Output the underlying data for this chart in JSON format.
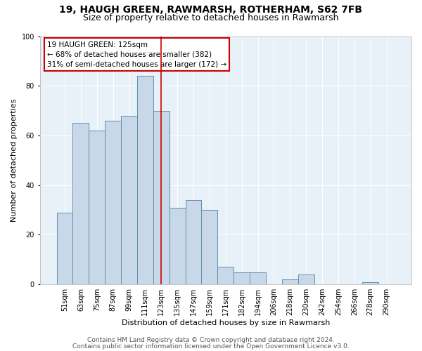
{
  "title1": "19, HAUGH GREEN, RAWMARSH, ROTHERHAM, S62 7FB",
  "title2": "Size of property relative to detached houses in Rawmarsh",
  "xlabel": "Distribution of detached houses by size in Rawmarsh",
  "ylabel": "Number of detached properties",
  "categories": [
    "51sqm",
    "63sqm",
    "75sqm",
    "87sqm",
    "99sqm",
    "111sqm",
    "123sqm",
    "135sqm",
    "147sqm",
    "159sqm",
    "171sqm",
    "182sqm",
    "194sqm",
    "206sqm",
    "218sqm",
    "230sqm",
    "242sqm",
    "254sqm",
    "266sqm",
    "278sqm",
    "290sqm"
  ],
  "values": [
    29,
    65,
    62,
    66,
    68,
    84,
    70,
    31,
    34,
    30,
    7,
    5,
    5,
    0,
    2,
    4,
    0,
    0,
    0,
    1,
    0
  ],
  "bar_color": "#c8d8e8",
  "bar_edge_color": "#6090b0",
  "property_line_x": 6.0,
  "annotation_text": "19 HAUGH GREEN: 125sqm\n← 68% of detached houses are smaller (382)\n31% of semi-detached houses are larger (172) →",
  "annotation_box_color": "#ffffff",
  "annotation_box_edge_color": "#cc0000",
  "property_line_color": "#cc0000",
  "ylim": [
    0,
    100
  ],
  "yticks": [
    0,
    20,
    40,
    60,
    80,
    100
  ],
  "background_color": "#e8f0f8",
  "grid_color": "#ffffff",
  "footer1": "Contains HM Land Registry data © Crown copyright and database right 2024.",
  "footer2": "Contains public sector information licensed under the Open Government Licence v3.0.",
  "title1_fontsize": 10,
  "title2_fontsize": 9,
  "annotation_fontsize": 7.5,
  "tick_fontsize": 7,
  "axis_label_fontsize": 8,
  "xlabel_fontsize": 8,
  "footer_fontsize": 6.5
}
